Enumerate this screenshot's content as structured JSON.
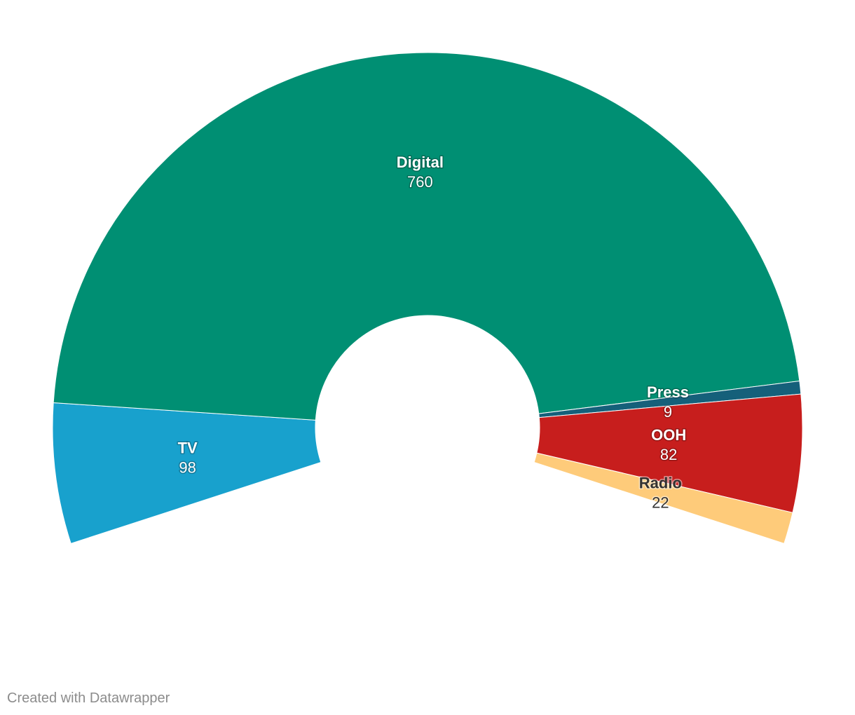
{
  "chart_data": {
    "type": "pie",
    "variant": "semi-donut",
    "title": "",
    "slices": [
      {
        "label": "TV",
        "value": 98,
        "color": "#18a1cd",
        "label_color": "#ffffff"
      },
      {
        "label": "Digital",
        "value": 760,
        "color": "#008f73",
        "label_color": "#ffffff"
      },
      {
        "label": "Press",
        "value": 9,
        "color": "#15607a",
        "label_color": "#ffffff"
      },
      {
        "label": "OOH",
        "value": 82,
        "color": "#c71e1d",
        "label_color": "#ffffff"
      },
      {
        "label": "Radio",
        "value": 22,
        "color": "#fecb7a",
        "label_color": "#333333"
      }
    ],
    "start_angle_deg": -108,
    "sweep_deg": 216
  },
  "credit": "Created with Datawrapper"
}
